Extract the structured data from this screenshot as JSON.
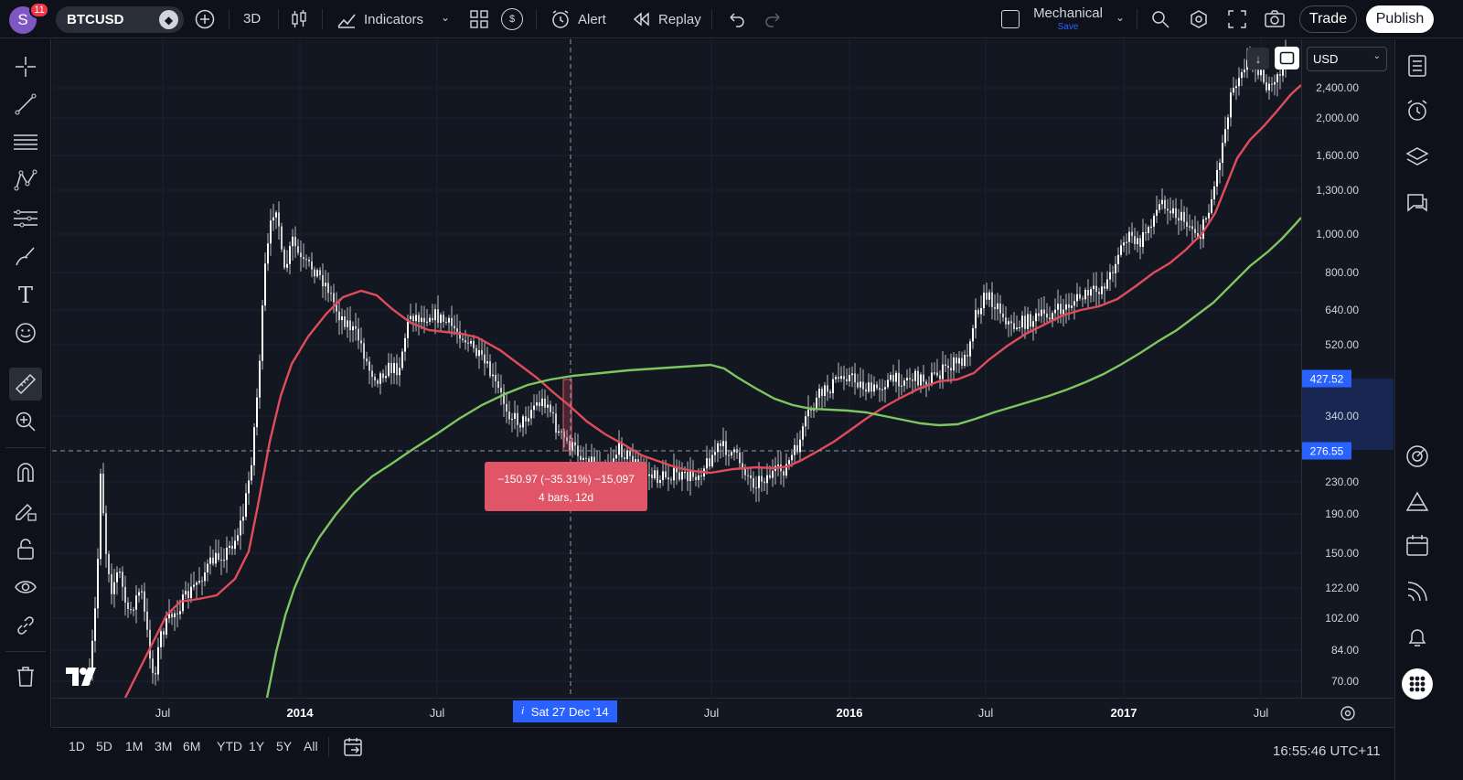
{
  "header": {
    "avatar_letter": "S",
    "notification_count": "11",
    "symbol": "BTCUSD",
    "interval": "3D",
    "indicators_label": "Indicators",
    "alert_label": "Alert",
    "replay_label": "Replay",
    "layout_name": "Mechanical",
    "layout_save": "Save",
    "trade_label": "Trade",
    "publish_label": "Publish",
    "colors": {
      "publish_bg": "#ffffff",
      "accent": "#2962ff"
    }
  },
  "left_toolbar": {
    "icons": [
      "crosshair-icon",
      "trend-line-icon",
      "fib-icon",
      "pattern-icon",
      "prediction-icon",
      "brush-icon",
      "text-icon",
      "emoji-icon",
      "ruler-icon",
      "zoom-icon",
      "magnet-icon",
      "lock-draw-icon",
      "lock-icon",
      "eye-icon",
      "link-icon",
      "trash-icon"
    ]
  },
  "right_sidebar": {
    "icons": [
      "watchlist-icon",
      "alarm-icon",
      "layers-icon",
      "chat-icon",
      "target-icon",
      "triangle-icon",
      "calendar-icon",
      "broadcast-icon",
      "bell-icon",
      "apps-icon"
    ]
  },
  "chart": {
    "currency": "USD",
    "price_ticks": [
      "2,400.00",
      "2,000.00",
      "1,600.00",
      "1,300.00",
      "1,000.00",
      "800.00",
      "640.00",
      "520.00",
      "340.00",
      "230.00",
      "190.00",
      "150.00",
      "122.00",
      "102.00",
      "84.00",
      "70.00"
    ],
    "price_tags": [
      {
        "label": "427.52",
        "color": "#2962ff"
      },
      {
        "label": "276.55",
        "color": "#2962ff"
      }
    ],
    "time_ticks": [
      {
        "label": "Jul",
        "year": false
      },
      {
        "label": "2014",
        "year": true
      },
      {
        "label": "Jul",
        "year": false
      },
      {
        "label": "Jul",
        "year": false
      },
      {
        "label": "2016",
        "year": true
      },
      {
        "label": "Jul",
        "year": false
      },
      {
        "label": "2017",
        "year": true
      },
      {
        "label": "Jul",
        "year": false
      }
    ],
    "crosshair_date": "Sat 27 Dec '14",
    "measure_line1": "−150.97 (−35.31%) −15,097",
    "measure_line2": "4 bars, 12d",
    "ma_colors": {
      "fast": "#e04c5a",
      "slow": "#7ec660"
    }
  },
  "bottom_bar": {
    "ranges": [
      "1D",
      "5D",
      "1M",
      "3M",
      "6M",
      "YTD",
      "1Y",
      "5Y",
      "All"
    ],
    "clock": "16:55:46 UTC+11"
  }
}
